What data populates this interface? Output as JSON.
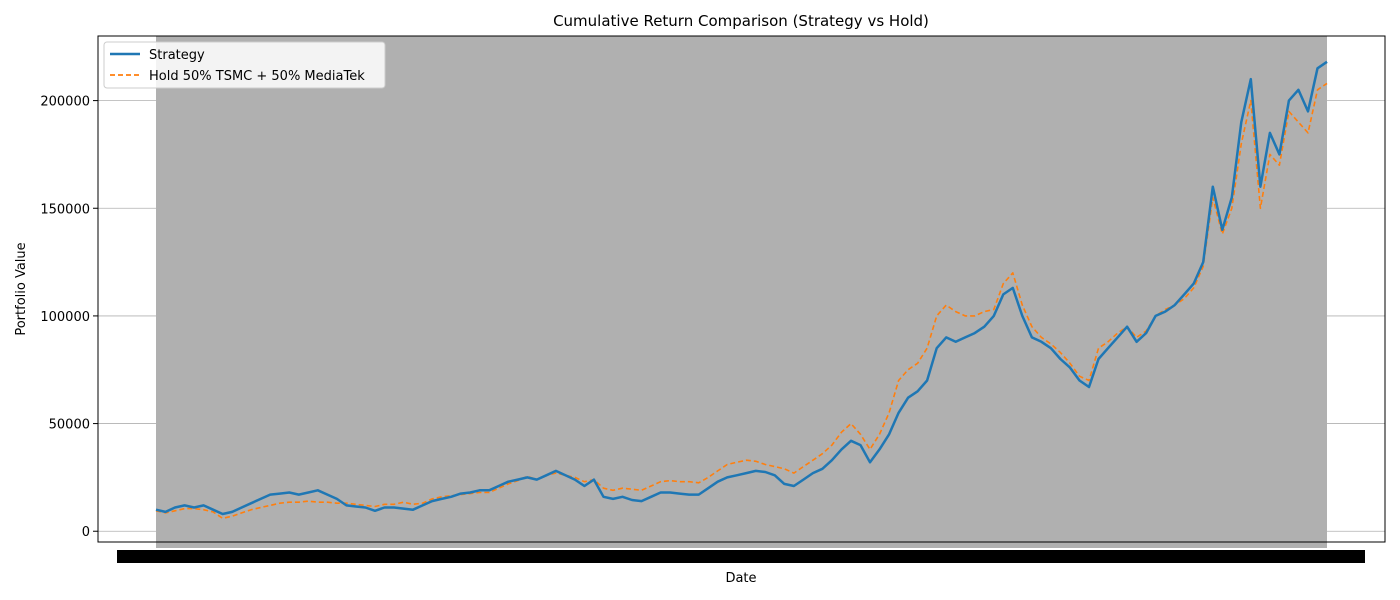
{
  "chart_data": {
    "type": "line",
    "title": "Cumulative Return Comparison (Strategy vs Hold)",
    "xlabel": "Date",
    "ylabel": "Portfolio Value",
    "ylim": [
      -5000,
      230000
    ],
    "y_ticks": [
      0,
      50000,
      100000,
      150000,
      200000
    ],
    "grid": "horizontal",
    "legend_position": "top-left",
    "colors": {
      "strategy": "#1f77b4",
      "hold": "#ff7f0e",
      "background_band": "#b0b0b0"
    },
    "series": [
      {
        "name": "Strategy",
        "style": "solid",
        "values": [
          10000,
          9000,
          11000,
          12000,
          11000,
          12000,
          10000,
          8000,
          9000,
          11000,
          13000,
          15000,
          17000,
          17500,
          18000,
          17000,
          18000,
          19000,
          17000,
          15000,
          12000,
          11500,
          11000,
          9500,
          11000,
          11000,
          10500,
          10000,
          12000,
          14000,
          15000,
          16000,
          17500,
          18000,
          19000,
          19000,
          21000,
          23000,
          24000,
          25000,
          24000,
          26000,
          28000,
          26000,
          24000,
          21000,
          24000,
          16000,
          15000,
          16000,
          14500,
          14000,
          16000,
          18000,
          18000,
          17500,
          17000,
          17000,
          20000,
          23000,
          25000,
          26000,
          27000,
          28000,
          27500,
          26000,
          22000,
          21000,
          24000,
          27000,
          29000,
          33000,
          38000,
          42000,
          40000,
          32000,
          38000,
          45000,
          55000,
          62000,
          65000,
          70000,
          85000,
          90000,
          88000,
          90000,
          92000,
          95000,
          100000,
          110000,
          113000,
          100000,
          90000,
          88000,
          85000,
          80000,
          76000,
          70000,
          67000,
          80000,
          85000,
          90000,
          95000,
          88000,
          92000,
          100000,
          102000,
          105000,
          110000,
          115000,
          125000,
          160000,
          140000,
          155000,
          190000,
          210000,
          160000,
          185000,
          175000,
          200000,
          205000,
          195000,
          215000,
          218000
        ]
      },
      {
        "name": "Hold 50% TSMC + 50% MediaTek",
        "style": "dashed",
        "values": [
          9500,
          8500,
          9500,
          10500,
          10500,
          10000,
          9000,
          6000,
          7000,
          8500,
          10000,
          11000,
          12000,
          13000,
          13500,
          13500,
          14000,
          13500,
          13500,
          13000,
          13000,
          12500,
          12000,
          11500,
          12500,
          12500,
          13500,
          12500,
          13000,
          15000,
          16000,
          16500,
          17000,
          17500,
          18000,
          18000,
          20000,
          22000,
          23500,
          25500,
          24000,
          26000,
          27000,
          26000,
          25000,
          23000,
          24000,
          20000,
          19000,
          20000,
          19500,
          19000,
          21000,
          23000,
          23500,
          23000,
          23000,
          22500,
          25000,
          28000,
          31000,
          32000,
          33000,
          32500,
          31000,
          30000,
          29000,
          27000,
          30000,
          33000,
          36000,
          40000,
          46000,
          50000,
          45000,
          38000,
          45000,
          55000,
          70000,
          75000,
          78000,
          85000,
          100000,
          105000,
          102000,
          100000,
          100000,
          102000,
          103000,
          115000,
          120000,
          105000,
          95000,
          90000,
          87000,
          83000,
          78000,
          72000,
          70000,
          85000,
          88000,
          92000,
          95000,
          90000,
          93000,
          100000,
          103000,
          105000,
          108000,
          113000,
          123000,
          155000,
          138000,
          150000,
          180000,
          200000,
          150000,
          175000,
          170000,
          195000,
          190000,
          185000,
          205000,
          208000
        ]
      }
    ]
  }
}
